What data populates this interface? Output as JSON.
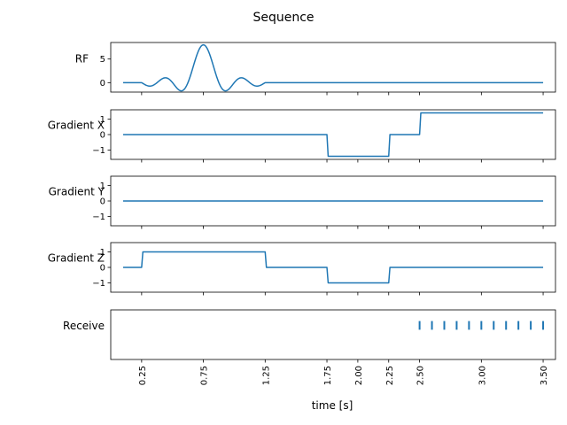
{
  "figure": {
    "title": "Sequence",
    "xlabel": "time [s]",
    "trace_color": "#1f77b4"
  },
  "chart_data": {
    "type": "line",
    "title": "Sequence",
    "xlabel": "time [s]",
    "xlim": [
      0.0,
      3.6
    ],
    "xticks": [
      0.25,
      0.75,
      1.25,
      1.75,
      2.0,
      2.25,
      2.5,
      3.0,
      3.5
    ],
    "xtick_labels": [
      "0.25",
      "0.75",
      "1.25",
      "1.75",
      "2.00",
      "2.25",
      "2.50",
      "3.00",
      "3.50"
    ],
    "xtick_rotation": 90,
    "grid": false,
    "panels": [
      {
        "ylabel": "RF",
        "ylim": [
          -2.0,
          8.5
        ],
        "yticks": [
          0,
          5
        ],
        "ytick_labels": [
          "0",
          "5"
        ],
        "series": {
          "kind": "sinc",
          "baseline": [
            [
              0.1,
              0.0
            ],
            [
              0.25,
              0.0
            ],
            [
              1.25,
              0.0
            ],
            [
              3.5,
              0.0
            ]
          ],
          "pulse": {
            "start": 0.25,
            "end": 1.25,
            "center": 0.75,
            "peak": 8.0,
            "zero_spacing": 0.125
          }
        }
      },
      {
        "ylabel": "Gradient X",
        "ylim": [
          -1.6,
          1.6
        ],
        "yticks": [
          -1,
          0,
          1
        ],
        "ytick_labels": [
          "−1",
          "0",
          "1"
        ],
        "series": {
          "kind": "polyline",
          "points": [
            [
              0.1,
              0
            ],
            [
              1.75,
              0
            ],
            [
              1.76,
              -1.4
            ],
            [
              2.25,
              -1.4
            ],
            [
              2.26,
              0
            ],
            [
              2.5,
              0
            ],
            [
              2.51,
              1.4
            ],
            [
              3.5,
              1.4
            ]
          ]
        }
      },
      {
        "ylabel": "Gradient Y",
        "ylim": [
          -1.6,
          1.6
        ],
        "yticks": [
          -1,
          0,
          1
        ],
        "ytick_labels": [
          "−1",
          "0",
          "1"
        ],
        "series": {
          "kind": "polyline",
          "points": [
            [
              0.1,
              0
            ],
            [
              3.5,
              0
            ]
          ]
        }
      },
      {
        "ylabel": "Gradient Z",
        "ylim": [
          -1.6,
          1.6
        ],
        "yticks": [
          -1,
          0,
          1
        ],
        "ytick_labels": [
          "−1",
          "0",
          "1"
        ],
        "series": {
          "kind": "polyline",
          "points": [
            [
              0.1,
              0
            ],
            [
              0.25,
              0
            ],
            [
              0.26,
              1.0
            ],
            [
              1.25,
              1.0
            ],
            [
              1.26,
              0
            ],
            [
              1.75,
              0
            ],
            [
              1.76,
              -1.0
            ],
            [
              2.25,
              -1.0
            ],
            [
              2.26,
              0
            ],
            [
              3.5,
              0
            ]
          ]
        }
      },
      {
        "ylabel": "Receive",
        "ylim": [
          -1.0,
          1.0
        ],
        "yticks": [],
        "ytick_labels": [],
        "series": {
          "kind": "markers",
          "times": [
            2.5,
            2.6,
            2.7,
            2.8,
            2.9,
            3.0,
            3.1,
            3.2,
            3.3,
            3.4,
            3.5
          ],
          "low": 0.2,
          "high": 0.55
        }
      }
    ]
  }
}
